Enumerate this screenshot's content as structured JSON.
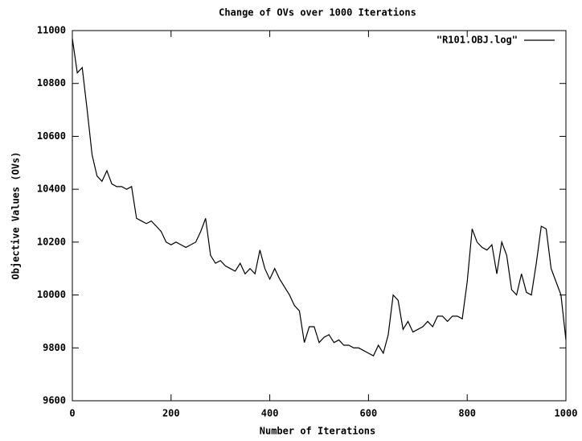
{
  "chart_data": {
    "type": "line",
    "title": "Change of OVs over 1000 Iterations",
    "x_label": "Number of Iterations",
    "y_label": "Objective Values (OVs)",
    "x": [
      0,
      10,
      20,
      30,
      40,
      50,
      60,
      70,
      80,
      90,
      100,
      110,
      120,
      130,
      140,
      150,
      160,
      170,
      180,
      190,
      200,
      210,
      220,
      230,
      240,
      250,
      260,
      270,
      280,
      290,
      300,
      310,
      320,
      330,
      340,
      350,
      360,
      370,
      380,
      390,
      400,
      410,
      420,
      430,
      440,
      450,
      460,
      470,
      480,
      490,
      500,
      510,
      520,
      530,
      540,
      550,
      560,
      570,
      580,
      590,
      600,
      610,
      620,
      630,
      640,
      650,
      660,
      670,
      680,
      690,
      700,
      710,
      720,
      730,
      740,
      750,
      760,
      770,
      780,
      790,
      800,
      810,
      820,
      830,
      840,
      850,
      860,
      870,
      880,
      890,
      900,
      910,
      920,
      930,
      940,
      950,
      960,
      970,
      980,
      990,
      1000
    ],
    "series": [
      {
        "name": "\"R101.OBJ.log\"",
        "color": "#000000",
        "values": [
          10970,
          10840,
          10860,
          10700,
          10530,
          10450,
          10430,
          10470,
          10420,
          10410,
          10410,
          10400,
          10410,
          10290,
          10280,
          10270,
          10280,
          10260,
          10240,
          10200,
          10190,
          10200,
          10190,
          10180,
          10190,
          10200,
          10240,
          10290,
          10150,
          10120,
          10130,
          10110,
          10100,
          10090,
          10120,
          10080,
          10100,
          10080,
          10170,
          10100,
          10060,
          10100,
          10060,
          10030,
          10000,
          9960,
          9940,
          9820,
          9880,
          9880,
          9820,
          9840,
          9850,
          9820,
          9830,
          9810,
          9810,
          9800,
          9800,
          9790,
          9780,
          9770,
          9810,
          9780,
          9850,
          10000,
          9980,
          9870,
          9900,
          9860,
          9870,
          9880,
          9900,
          9880,
          9920,
          9920,
          9900,
          9920,
          9920,
          9910,
          10050,
          10250,
          10200,
          10180,
          10170,
          10190,
          10080,
          10200,
          10150,
          10020,
          10000,
          10080,
          10010,
          10000,
          10120,
          10260,
          10250,
          10100,
          10050,
          10000,
          9830
        ]
      }
    ],
    "xlim": [
      0,
      1000
    ],
    "xticks": [
      0,
      200,
      400,
      600,
      800,
      1000
    ],
    "ylim": [
      9600,
      11000
    ],
    "yticks": [
      9600,
      9800,
      10000,
      10200,
      10400,
      10600,
      10800,
      11000
    ],
    "grid": false,
    "legend": "top-right"
  }
}
